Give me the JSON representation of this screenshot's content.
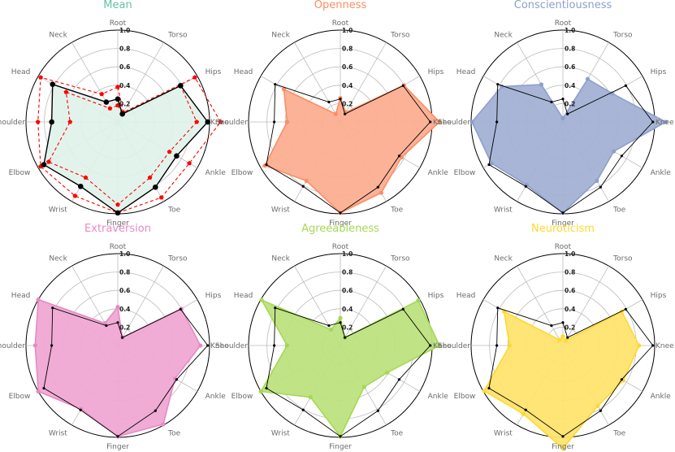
{
  "chart_data": {
    "type": "radar",
    "axes": [
      "Root",
      "Torso",
      "Hips",
      "Knee",
      "Ankle",
      "Toe",
      "Finger",
      "Wrist",
      "Elbow",
      "Shoulder",
      "Head",
      "Neck"
    ],
    "r_ticks": [
      "0.2",
      "0.4",
      "0.6",
      "0.8",
      "1.0"
    ],
    "rlim": [
      0,
      1
    ],
    "panels": [
      {
        "title": "Mean",
        "color": "#66c2a5",
        "fill": "#dff2ea",
        "reference": [
          0.25,
          0.1,
          0.79,
          0.98,
          0.74,
          0.82,
          0.99,
          0.81,
          0.93,
          0.72,
          0.82,
          0.25
        ],
        "series": [
          {
            "name": "mean",
            "values": [
              0.25,
              0.1,
              0.79,
              0.98,
              0.74,
              0.82,
              0.99,
              0.81,
              0.93,
              0.72,
              0.82,
              0.25
            ],
            "color": "#000000",
            "style": "solid"
          },
          {
            "name": "upper",
            "values": [
              0.38,
              0.12,
              0.97,
              1.12,
              0.9,
              0.95,
              0.99,
              0.93,
              0.97,
              0.87,
              0.97,
              0.35
            ],
            "color": "#ff0000",
            "style": "dashed"
          },
          {
            "name": "lower",
            "values": [
              0.18,
              0.1,
              0.79,
              0.86,
              0.65,
              0.7,
              0.9,
              0.7,
              0.87,
              0.52,
              0.65,
              0.17
            ],
            "color": "#ff0000",
            "style": "dashed"
          }
        ]
      },
      {
        "title": "Openness",
        "color": "#fc8d62",
        "fill": "#fcae91",
        "reference": [
          0.25,
          0.1,
          0.79,
          0.98,
          0.74,
          0.82,
          0.99,
          0.81,
          0.93,
          0.72,
          0.82,
          0.25
        ],
        "series": [
          {
            "name": "openness",
            "values": [
              0.26,
              0.12,
              0.8,
              1.08,
              0.77,
              0.89,
              0.99,
              0.74,
              0.95,
              0.58,
              0.71,
              0.1
            ],
            "color": "#fc8d62",
            "style": "filled"
          }
        ]
      },
      {
        "title": "Conscientiousness",
        "color": "#8da0cb",
        "fill": "#a3b1d4",
        "reference": [
          0.25,
          0.1,
          0.79,
          0.98,
          0.74,
          0.82,
          0.99,
          0.81,
          0.93,
          0.72,
          0.82,
          0.25
        ],
        "series": [
          {
            "name": "conscientiousness",
            "values": [
              0.04,
              0.54,
              0.62,
              1.12,
              0.64,
              0.74,
              0.99,
              0.79,
              0.9,
              0.99,
              0.77,
              0.47
            ],
            "color": "#8da0cb",
            "style": "filled"
          }
        ]
      },
      {
        "title": "Extraversion",
        "color": "#e78ac3",
        "fill": "#efa8d3",
        "reference": [
          0.25,
          0.1,
          0.79,
          0.98,
          0.74,
          0.82,
          0.99,
          0.81,
          0.93,
          0.72,
          0.82,
          0.25
        ],
        "series": [
          {
            "name": "extraversion",
            "values": [
              0.42,
              0.1,
              0.8,
              0.9,
              0.72,
              0.99,
              0.99,
              0.8,
              1.0,
              0.9,
              1.0,
              0.28
            ],
            "color": "#e78ac3",
            "style": "filled"
          }
        ]
      },
      {
        "title": "Agreeableness",
        "color": "#a6d854",
        "fill": "#bde27f",
        "reference": [
          0.25,
          0.1,
          0.79,
          0.98,
          0.74,
          0.82,
          0.99,
          0.81,
          0.93,
          0.72,
          0.82,
          0.25
        ],
        "series": [
          {
            "name": "agreeableness",
            "values": [
              0.3,
              0.1,
              0.98,
              1.08,
              0.59,
              0.52,
              0.99,
              0.65,
              1.0,
              0.58,
              0.99,
              0.2
            ],
            "color": "#a6d854",
            "style": "filled"
          }
        ]
      },
      {
        "title": "Neuroticism",
        "color": "#ffd92f",
        "fill": "#ffe36f",
        "reference": [
          0.25,
          0.1,
          0.79,
          0.98,
          0.74,
          0.82,
          0.99,
          0.81,
          0.93,
          0.72,
          0.82,
          0.25
        ],
        "series": [
          {
            "name": "neuroticism",
            "values": [
              0.1,
              0.06,
              0.74,
              0.83,
              0.76,
              0.76,
              1.12,
              0.86,
              0.99,
              0.58,
              0.74,
              0.07
            ],
            "color": "#ffd92f",
            "style": "filled"
          }
        ]
      }
    ]
  }
}
